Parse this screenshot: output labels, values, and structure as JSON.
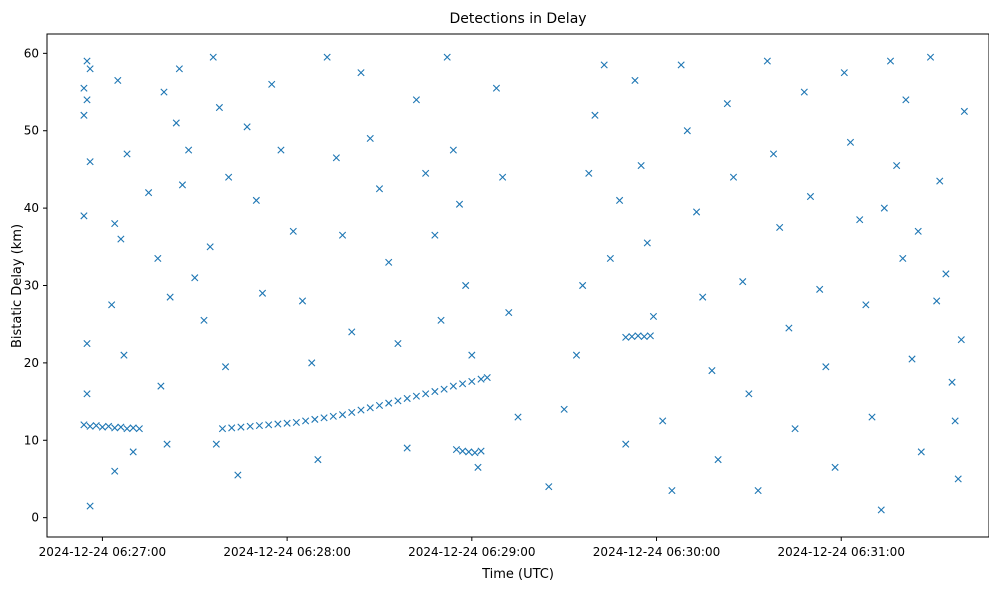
{
  "chart_data": {
    "type": "scatter",
    "title": "Detections in Delay",
    "xlabel": "Time (UTC)",
    "ylabel": "Bistatic Delay (km)",
    "x_ticks": [
      "2024-12-24 06:27:00",
      "2024-12-24 06:28:00",
      "2024-12-24 06:29:00",
      "2024-12-24 06:30:00",
      "2024-12-24 06:31:00"
    ],
    "y_ticks": [
      0,
      10,
      20,
      30,
      40,
      50,
      60
    ],
    "xlim": [
      "2024-12-24 06:26:42",
      "2024-12-24 06:31:48"
    ],
    "ylim": [
      -2.5,
      62.5
    ],
    "grid": false,
    "marker": "x",
    "color": "#1f77b4",
    "series": [
      {
        "points": [
          [
            "06:26:54",
            12.0
          ],
          [
            "06:26:56",
            11.8
          ],
          [
            "06:26:58",
            11.9
          ],
          [
            "06:27:00",
            11.7
          ],
          [
            "06:27:02",
            11.8
          ],
          [
            "06:27:04",
            11.6
          ],
          [
            "06:27:06",
            11.7
          ],
          [
            "06:27:08",
            11.5
          ],
          [
            "06:27:10",
            11.6
          ],
          [
            "06:27:12",
            11.5
          ],
          [
            "06:27:39",
            11.5
          ],
          [
            "06:27:42",
            11.6
          ],
          [
            "06:27:45",
            11.7
          ],
          [
            "06:27:48",
            11.8
          ],
          [
            "06:27:51",
            11.9
          ],
          [
            "06:27:54",
            12.0
          ],
          [
            "06:27:57",
            12.1
          ],
          [
            "06:28:00",
            12.2
          ],
          [
            "06:28:03",
            12.3
          ],
          [
            "06:28:06",
            12.5
          ],
          [
            "06:28:09",
            12.7
          ],
          [
            "06:28:12",
            12.9
          ],
          [
            "06:28:15",
            13.1
          ],
          [
            "06:28:18",
            13.3
          ],
          [
            "06:28:21",
            13.6
          ],
          [
            "06:28:24",
            13.9
          ],
          [
            "06:28:27",
            14.2
          ],
          [
            "06:28:30",
            14.5
          ],
          [
            "06:28:33",
            14.8
          ],
          [
            "06:28:36",
            15.1
          ],
          [
            "06:28:39",
            15.4
          ],
          [
            "06:28:42",
            15.7
          ],
          [
            "06:28:45",
            16.0
          ],
          [
            "06:28:48",
            16.3
          ],
          [
            "06:28:51",
            16.6
          ],
          [
            "06:28:54",
            17.0
          ],
          [
            "06:28:57",
            17.3
          ],
          [
            "06:29:00",
            17.6
          ],
          [
            "06:29:03",
            17.9
          ],
          [
            "06:29:05",
            18.1
          ],
          [
            "06:28:55",
            8.8
          ],
          [
            "06:28:57",
            8.6
          ],
          [
            "06:28:59",
            8.5
          ],
          [
            "06:29:01",
            8.4
          ],
          [
            "06:29:03",
            8.6
          ],
          [
            "06:29:50",
            23.3
          ],
          [
            "06:29:52",
            23.4
          ],
          [
            "06:29:54",
            23.5
          ],
          [
            "06:29:56",
            23.4
          ],
          [
            "06:29:58",
            23.5
          ],
          [
            "06:26:55",
            59.0
          ],
          [
            "06:26:56",
            58.0
          ],
          [
            "06:26:54",
            55.5
          ],
          [
            "06:26:55",
            54.0
          ],
          [
            "06:26:54",
            52.0
          ],
          [
            "06:26:56",
            46.0
          ],
          [
            "06:26:54",
            39.0
          ],
          [
            "06:26:55",
            22.5
          ],
          [
            "06:26:55",
            16.0
          ],
          [
            "06:26:56",
            1.5
          ],
          [
            "06:27:05",
            56.5
          ],
          [
            "06:27:08",
            47.0
          ],
          [
            "06:27:04",
            38.0
          ],
          [
            "06:27:06",
            36.0
          ],
          [
            "06:27:03",
            27.5
          ],
          [
            "06:27:07",
            21.0
          ],
          [
            "06:27:04",
            6.0
          ],
          [
            "06:27:10",
            8.5
          ],
          [
            "06:27:18",
            33.5
          ],
          [
            "06:27:15",
            42.0
          ],
          [
            "06:27:20",
            55.0
          ],
          [
            "06:27:24",
            51.0
          ],
          [
            "06:27:26",
            43.0
          ],
          [
            "06:27:22",
            28.5
          ],
          [
            "06:27:19",
            17.0
          ],
          [
            "06:27:21",
            9.5
          ],
          [
            "06:27:25",
            58.0
          ],
          [
            "06:27:28",
            47.5
          ],
          [
            "06:27:30",
            31.0
          ],
          [
            "06:27:33",
            25.5
          ],
          [
            "06:27:36",
            59.5
          ],
          [
            "06:27:38",
            53.0
          ],
          [
            "06:27:41",
            44.0
          ],
          [
            "06:27:35",
            35.0
          ],
          [
            "06:27:40",
            19.5
          ],
          [
            "06:27:37",
            9.5
          ],
          [
            "06:27:44",
            5.5
          ],
          [
            "06:27:47",
            50.5
          ],
          [
            "06:27:50",
            41.0
          ],
          [
            "06:27:52",
            29.0
          ],
          [
            "06:27:55",
            56.0
          ],
          [
            "06:27:58",
            47.5
          ],
          [
            "06:28:02",
            37.0
          ],
          [
            "06:28:05",
            28.0
          ],
          [
            "06:28:08",
            20.0
          ],
          [
            "06:28:10",
            7.5
          ],
          [
            "06:28:13",
            59.5
          ],
          [
            "06:28:16",
            46.5
          ],
          [
            "06:28:18",
            36.5
          ],
          [
            "06:28:21",
            24.0
          ],
          [
            "06:28:24",
            57.5
          ],
          [
            "06:28:27",
            49.0
          ],
          [
            "06:28:30",
            42.5
          ],
          [
            "06:28:33",
            33.0
          ],
          [
            "06:28:36",
            22.5
          ],
          [
            "06:28:39",
            9.0
          ],
          [
            "06:28:42",
            54.0
          ],
          [
            "06:28:45",
            44.5
          ],
          [
            "06:28:48",
            36.5
          ],
          [
            "06:28:50",
            25.5
          ],
          [
            "06:28:52",
            59.5
          ],
          [
            "06:28:54",
            47.5
          ],
          [
            "06:28:56",
            40.5
          ],
          [
            "06:28:58",
            30.0
          ],
          [
            "06:29:00",
            21.0
          ],
          [
            "06:29:02",
            6.5
          ],
          [
            "06:29:08",
            55.5
          ],
          [
            "06:29:10",
            44.0
          ],
          [
            "06:29:12",
            26.5
          ],
          [
            "06:29:15",
            13.0
          ],
          [
            "06:29:25",
            4.0
          ],
          [
            "06:29:30",
            14.0
          ],
          [
            "06:29:34",
            21.0
          ],
          [
            "06:29:36",
            30.0
          ],
          [
            "06:29:38",
            44.5
          ],
          [
            "06:29:40",
            52.0
          ],
          [
            "06:29:43",
            58.5
          ],
          [
            "06:29:45",
            33.5
          ],
          [
            "06:29:48",
            41.0
          ],
          [
            "06:29:50",
            9.5
          ],
          [
            "06:29:53",
            56.5
          ],
          [
            "06:29:55",
            45.5
          ],
          [
            "06:29:57",
            35.5
          ],
          [
            "06:29:59",
            26.0
          ],
          [
            "06:30:02",
            12.5
          ],
          [
            "06:30:05",
            3.5
          ],
          [
            "06:30:08",
            58.5
          ],
          [
            "06:30:10",
            50.0
          ],
          [
            "06:30:13",
            39.5
          ],
          [
            "06:30:15",
            28.5
          ],
          [
            "06:30:18",
            19.0
          ],
          [
            "06:30:20",
            7.5
          ],
          [
            "06:30:23",
            53.5
          ],
          [
            "06:30:25",
            44.0
          ],
          [
            "06:30:28",
            30.5
          ],
          [
            "06:30:30",
            16.0
          ],
          [
            "06:30:33",
            3.5
          ],
          [
            "06:30:36",
            59.0
          ],
          [
            "06:30:38",
            47.0
          ],
          [
            "06:30:40",
            37.5
          ],
          [
            "06:30:43",
            24.5
          ],
          [
            "06:30:45",
            11.5
          ],
          [
            "06:30:48",
            55.0
          ],
          [
            "06:30:50",
            41.5
          ],
          [
            "06:30:53",
            29.5
          ],
          [
            "06:30:55",
            19.5
          ],
          [
            "06:30:58",
            6.5
          ],
          [
            "06:31:01",
            57.5
          ],
          [
            "06:31:03",
            48.5
          ],
          [
            "06:31:06",
            38.5
          ],
          [
            "06:31:08",
            27.5
          ],
          [
            "06:31:10",
            13.0
          ],
          [
            "06:31:13",
            1.0
          ],
          [
            "06:31:16",
            59.0
          ],
          [
            "06:31:18",
            45.5
          ],
          [
            "06:31:20",
            33.5
          ],
          [
            "06:31:23",
            20.5
          ],
          [
            "06:31:26",
            8.5
          ],
          [
            "06:31:29",
            59.5
          ],
          [
            "06:31:32",
            43.5
          ],
          [
            "06:31:34",
            31.5
          ],
          [
            "06:31:36",
            17.5
          ],
          [
            "06:31:38",
            5.0
          ],
          [
            "06:31:40",
            52.5
          ],
          [
            "06:31:39",
            23.0
          ],
          [
            "06:31:37",
            12.5
          ],
          [
            "06:31:31",
            28.0
          ],
          [
            "06:31:25",
            37.0
          ],
          [
            "06:31:21",
            54.0
          ],
          [
            "06:31:14",
            40.0
          ]
        ]
      }
    ]
  }
}
